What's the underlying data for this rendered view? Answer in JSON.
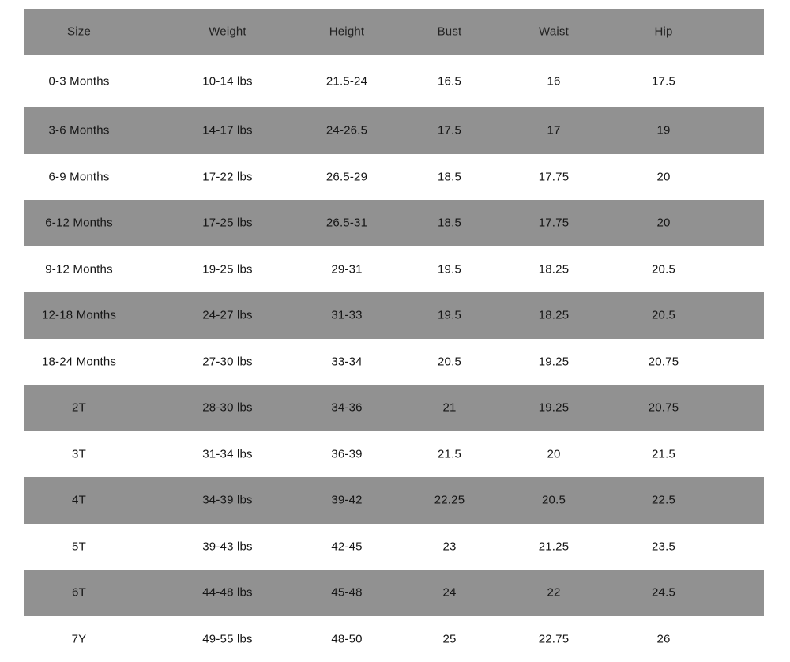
{
  "colors": {
    "stripe": "#919191",
    "background": "#ffffff",
    "text": "#151515"
  },
  "columns": [
    "Size",
    "Weight",
    "Height",
    "Bust",
    "Waist",
    "Hip"
  ],
  "rows": [
    [
      "0-3 Months",
      "10-14 lbs",
      "21.5-24",
      "16.5",
      "16",
      "17.5"
    ],
    [
      "3-6 Months",
      "14-17 lbs",
      "24-26.5",
      "17.5",
      "17",
      "19"
    ],
    [
      "6-9 Months",
      "17-22 lbs",
      "26.5-29",
      "18.5",
      "17.75",
      "20"
    ],
    [
      "6-12 Months",
      "17-25 lbs",
      "26.5-31",
      "18.5",
      "17.75",
      "20"
    ],
    [
      "9-12 Months",
      "19-25 lbs",
      "29-31",
      "19.5",
      "18.25",
      "20.5"
    ],
    [
      "12-18 Months",
      "24-27 lbs",
      "31-33",
      "19.5",
      "18.25",
      "20.5"
    ],
    [
      "18-24 Months",
      "27-30 lbs",
      "33-34",
      "20.5",
      "19.25",
      "20.75"
    ],
    [
      "2T",
      "28-30 lbs",
      "34-36",
      "21",
      "19.25",
      "20.75"
    ],
    [
      "3T",
      "31-34 lbs",
      "36-39",
      "21.5",
      "20",
      "21.5"
    ],
    [
      "4T",
      "34-39 lbs",
      "39-42",
      "22.25",
      "20.5",
      "22.5"
    ],
    [
      "5T",
      "39-43 lbs",
      "42-45",
      "23",
      "21.25",
      "23.5"
    ],
    [
      "6T",
      "44-48 lbs",
      "45-48",
      "24",
      "22",
      "24.5"
    ],
    [
      "7Y",
      "49-55 lbs",
      "48-50",
      "25",
      "22.75",
      "26"
    ]
  ]
}
